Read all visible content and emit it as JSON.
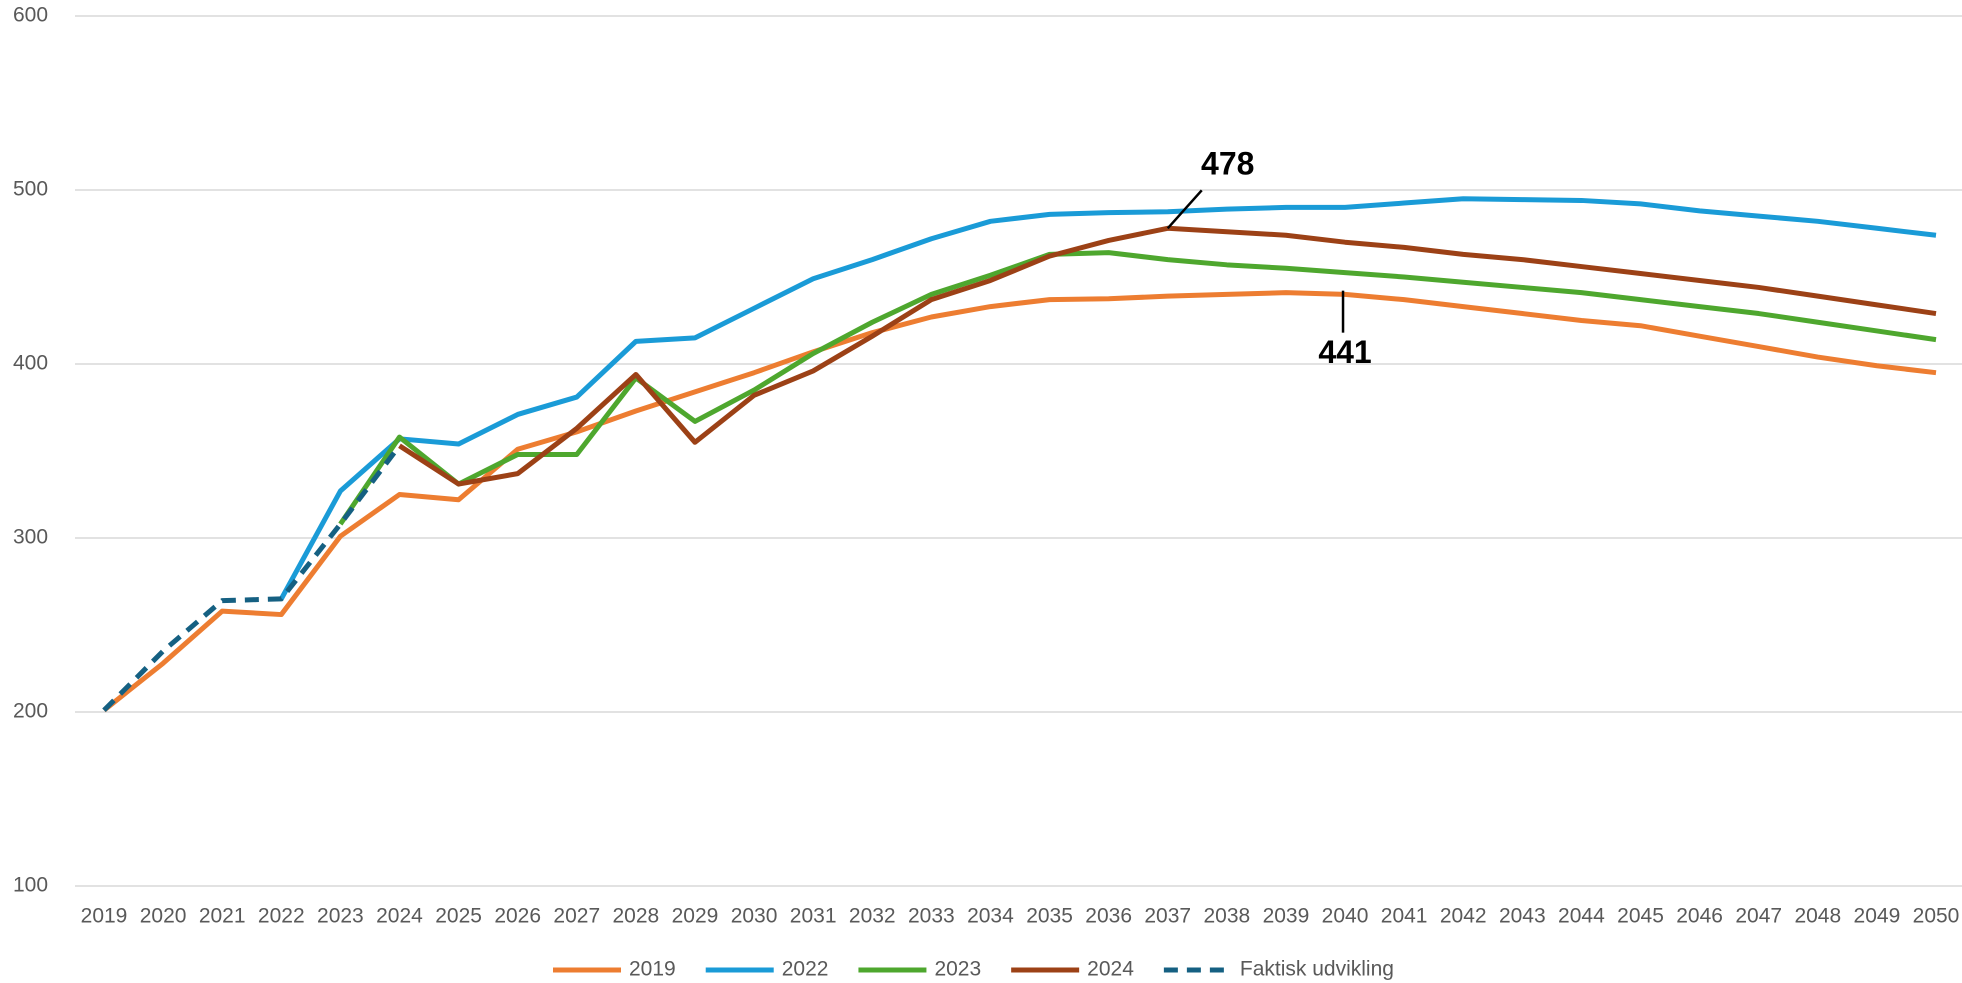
{
  "chart_data": {
    "type": "line",
    "categories": [
      "2019",
      "2020",
      "2021",
      "2022",
      "2023",
      "2024",
      "2025",
      "2026",
      "2027",
      "2028",
      "2029",
      "2030",
      "2031",
      "2032",
      "2033",
      "2034",
      "2035",
      "2036",
      "2037",
      "2038",
      "2039",
      "2040",
      "2041",
      "2042",
      "2043",
      "2044",
      "2045",
      "2046",
      "2047",
      "2048",
      "2049",
      "2050"
    ],
    "ylim": [
      100,
      600
    ],
    "yticks": [
      100,
      200,
      300,
      400,
      500,
      600
    ],
    "grid": true,
    "legend": "bottom",
    "series": [
      {
        "name": "2019",
        "color": "#ed7d31",
        "dash": false,
        "values": [
          201,
          228,
          258,
          256,
          301,
          325,
          322,
          351,
          361,
          373,
          384,
          395,
          407,
          418,
          427,
          433,
          437,
          437.5,
          439,
          440,
          441,
          440,
          437,
          433,
          429,
          425,
          422,
          416,
          410,
          404,
          399,
          395
        ]
      },
      {
        "name": "2022",
        "color": "#1a9bd7",
        "dash": false,
        "values": [
          null,
          null,
          null,
          265,
          327,
          357,
          354,
          371,
          381,
          413,
          415,
          432,
          449,
          460,
          472,
          482,
          486,
          487,
          487.5,
          489,
          490,
          490,
          492.5,
          495,
          494.5,
          494,
          492,
          488,
          485,
          482,
          478,
          474
        ]
      },
      {
        "name": "2023",
        "color": "#4ea72e",
        "dash": false,
        "values": [
          null,
          null,
          null,
          null,
          308,
          358,
          331,
          348,
          348,
          392,
          367,
          385,
          406,
          424,
          440,
          451,
          463,
          464,
          460,
          457,
          455,
          452.5,
          450,
          447,
          444,
          441,
          437,
          433,
          429,
          424,
          419,
          414
        ]
      },
      {
        "name": "2024",
        "color": "#9c4116",
        "dash": false,
        "values": [
          null,
          null,
          null,
          null,
          null,
          353,
          331,
          337,
          363,
          394,
          355,
          382,
          396,
          416,
          437,
          448,
          462,
          471,
          478,
          476,
          474,
          470,
          467,
          463,
          460,
          456,
          452,
          448,
          444,
          439,
          434,
          429
        ]
      },
      {
        "name": "Faktisk udvikling",
        "color": "#156082",
        "dash": true,
        "values": [
          201,
          235,
          264,
          265,
          308,
          353,
          null,
          null,
          null,
          null,
          null,
          null,
          null,
          null,
          null,
          null,
          null,
          null,
          null,
          null,
          null,
          null,
          null,
          null,
          null,
          null,
          null,
          null,
          null,
          null,
          null,
          null
        ]
      }
    ],
    "annotations": [
      {
        "text": "478",
        "x": "2037",
        "y": 478,
        "placement": "above"
      },
      {
        "text": "441",
        "x": "2040",
        "y": 441,
        "placement": "below"
      }
    ]
  }
}
